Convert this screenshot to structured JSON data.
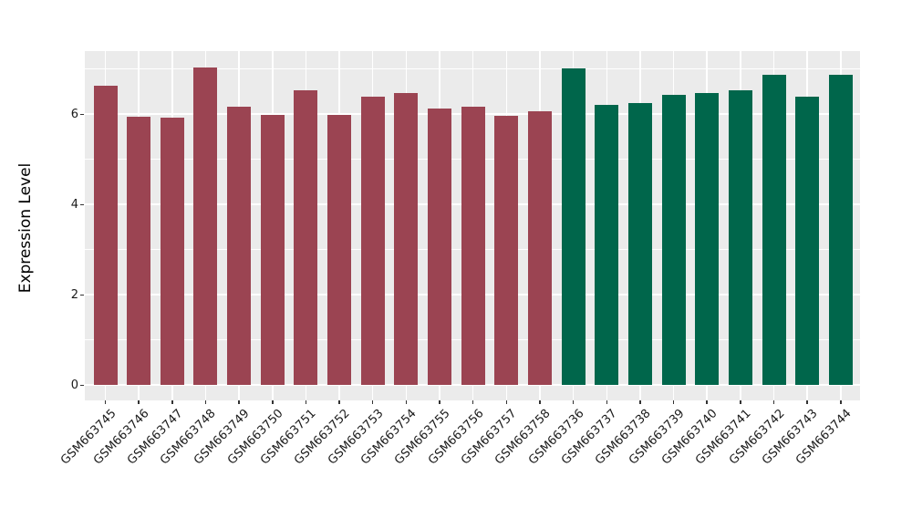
{
  "chart_data": {
    "type": "bar",
    "title": "",
    "xlabel": "",
    "ylabel": "Expression Level",
    "categories": [
      "GSM663745",
      "GSM663746",
      "GSM663747",
      "GSM663748",
      "GSM663749",
      "GSM663750",
      "GSM663751",
      "GSM663752",
      "GSM663753",
      "GSM663754",
      "GSM663755",
      "GSM663756",
      "GSM663757",
      "GSM663758",
      "GSM663736",
      "GSM663737",
      "GSM663738",
      "GSM663739",
      "GSM663740",
      "GSM663741",
      "GSM663742",
      "GSM663743",
      "GSM663744"
    ],
    "values": [
      6.64,
      5.94,
      5.92,
      7.04,
      6.17,
      5.98,
      6.53,
      5.98,
      6.39,
      6.48,
      6.13,
      6.17,
      5.97,
      6.06,
      7.02,
      6.21,
      6.24,
      6.44,
      6.48,
      6.54,
      6.87,
      6.39,
      6.87
    ],
    "groups": [
      {
        "label": "GSM663745-GSM663758",
        "color": "#9B4452",
        "start": 0,
        "end": 13
      },
      {
        "label": "GSM663736-GSM663744",
        "color": "#00664B",
        "start": 14,
        "end": 22
      }
    ],
    "yticks": [
      0,
      2,
      4,
      6
    ],
    "yticks_minor": [
      1,
      3,
      5,
      7
    ],
    "ylim": [
      0,
      7.4
    ],
    "grid": true,
    "legend": "none",
    "colors": {
      "plot_background": "#EBEBEB",
      "gridline": "#FFFFFF",
      "axis_text": "#1A1A1A",
      "tick_mark": "#333333"
    }
  }
}
